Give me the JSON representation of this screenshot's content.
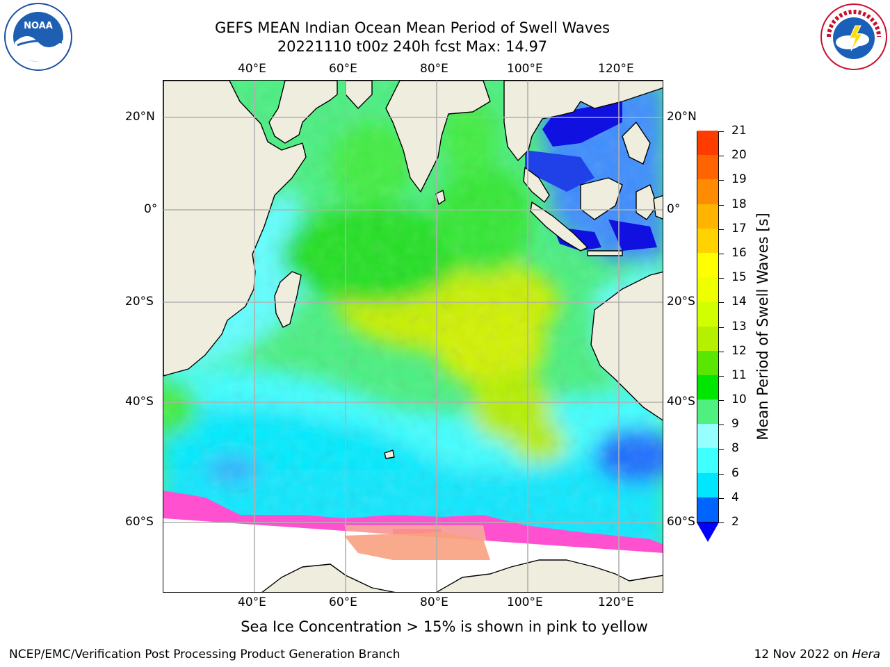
{
  "header": {
    "title_line1": "GEFS MEAN Indian Ocean Mean Period of Swell Waves",
    "title_line2": "20221110 t00z 240h fcst   Max: 14.97"
  },
  "logos": {
    "left": "NOAA",
    "right": "NATIONAL WEATHER SERVICE"
  },
  "map": {
    "lon_ticks": [
      "40°E",
      "60°E",
      "80°E",
      "100°E",
      "120°E"
    ],
    "lat_ticks": [
      "20°N",
      "0°",
      "20°S",
      "40°S",
      "60°S"
    ],
    "colors": {
      "land": "#eeedde",
      "ocean_default": "#40ff80",
      "grid": "#b0b0b0"
    }
  },
  "colorbar": {
    "label": "Mean Period of Swell Waves [s]",
    "levels": [
      "2",
      "4",
      "6",
      "8",
      "9",
      "10",
      "11",
      "12",
      "13",
      "14",
      "15",
      "16",
      "17",
      "18",
      "19",
      "20",
      "21"
    ],
    "colors": [
      "#0064ff",
      "#00e6ff",
      "#40ffff",
      "#96ffff",
      "#50f080",
      "#00e600",
      "#5ae600",
      "#b4f000",
      "#d2ff00",
      "#f0ff00",
      "#ffff00",
      "#ffd200",
      "#ffb400",
      "#ff8c00",
      "#ff6400",
      "#ff3c00",
      "#ff0000"
    ]
  },
  "footer": {
    "caption": "Sea Ice Concentration > 15% is shown in pink to yellow",
    "left": "NCEP/EMC/Verification Post Processing Product Generation Branch",
    "right_date": "12 Nov 2022 on ",
    "right_machine": "Hera"
  }
}
